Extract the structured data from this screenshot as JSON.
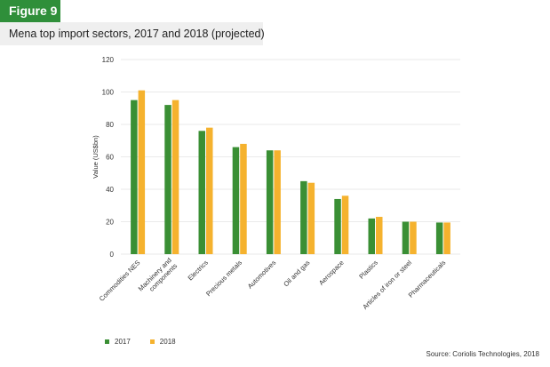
{
  "figure_label": "Figure 9",
  "title": "Mena top import sectors, 2017 and 2018 (projected)",
  "source": "Source: Coriolis Technologies, 2018",
  "colors": {
    "badge": "#2f8f3a",
    "series_2017": "#3a8f34",
    "series_2018": "#f5b22e",
    "grid": "#e3e3e3"
  },
  "chart_data": {
    "type": "bar",
    "title": "Mena top import sectors, 2017 and 2018 (projected)",
    "xlabel": "",
    "ylabel": "Value (US$bn)",
    "ylim": [
      0,
      120
    ],
    "yticks": [
      "0",
      "20",
      "40",
      "60",
      "80",
      "100",
      "120"
    ],
    "grid": true,
    "legend_position": "bottom-left",
    "categories": [
      "Commodities NES",
      "Machinery and components",
      "Electrics",
      "Precious metals",
      "Automotives",
      "Oil and gas",
      "Aerospace",
      "Plastics",
      "Articles of iron or steel",
      "Pharmaceuticals"
    ],
    "series": [
      {
        "name": "2017",
        "values": [
          95,
          92,
          76,
          66,
          64,
          45,
          34,
          22,
          20,
          19.5
        ]
      },
      {
        "name": "2018",
        "values": [
          101,
          95,
          78,
          68,
          64,
          44,
          36,
          23,
          20,
          19.5
        ]
      }
    ]
  }
}
